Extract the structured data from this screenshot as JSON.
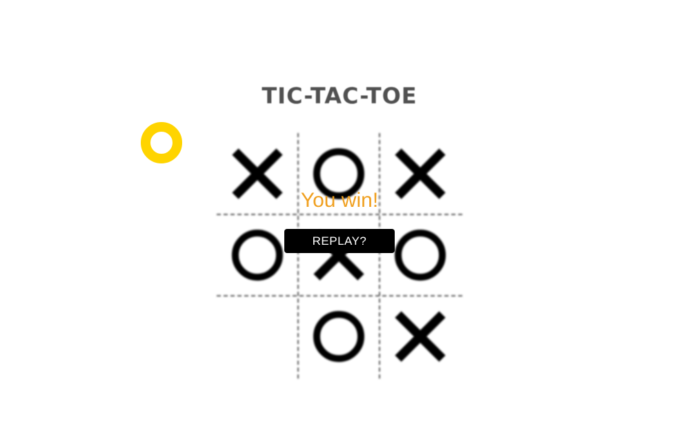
{
  "game": {
    "title": "TIC-TAC-TOE",
    "current_turn": "O",
    "turn_indicator_color": "#FFD400"
  },
  "board": {
    "cells": [
      "X",
      "O",
      "X",
      "O",
      "X",
      "O",
      "",
      "O",
      "X"
    ]
  },
  "result": {
    "message": "You win!",
    "message_color": "#F0A020",
    "replay_label": "REPLAY?"
  }
}
